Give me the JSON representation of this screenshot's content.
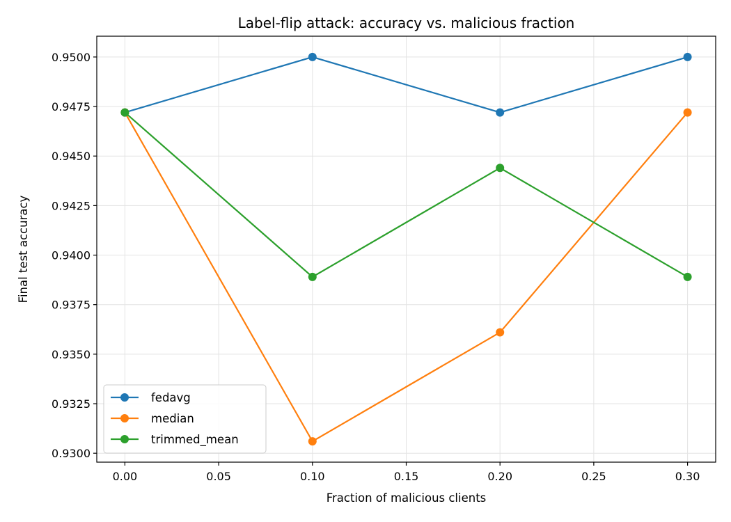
{
  "chart_data": {
    "type": "line",
    "title": "Label-flip attack: accuracy vs. malicious fraction",
    "xlabel": "Fraction of malicious clients",
    "ylabel": "Final test accuracy",
    "x": [
      0.0,
      0.1,
      0.2,
      0.3
    ],
    "xlim": [
      -0.015,
      0.315
    ],
    "ylim": [
      0.92955,
      0.95105
    ],
    "xticks": [
      0.0,
      0.05,
      0.1,
      0.15,
      0.2,
      0.25,
      0.3
    ],
    "xtick_labels": [
      "0.00",
      "0.05",
      "0.10",
      "0.15",
      "0.20",
      "0.25",
      "0.30"
    ],
    "yticks": [
      0.93,
      0.9325,
      0.935,
      0.9375,
      0.94,
      0.9425,
      0.945,
      0.9475,
      0.95
    ],
    "ytick_labels": [
      "0.9300",
      "0.9325",
      "0.9350",
      "0.9375",
      "0.9400",
      "0.9425",
      "0.9450",
      "0.9475",
      "0.9500"
    ],
    "grid": true,
    "legend_position": "lower-left",
    "series": [
      {
        "name": "fedavg",
        "color": "#1f77b4",
        "values": [
          0.9472,
          0.95,
          0.9472,
          0.95
        ]
      },
      {
        "name": "median",
        "color": "#ff7f0e",
        "values": [
          0.9472,
          0.9306,
          0.9361,
          0.9472
        ]
      },
      {
        "name": "trimmed_mean",
        "color": "#2ca02c",
        "values": [
          0.9472,
          0.9389,
          0.9444,
          0.9389
        ]
      }
    ]
  }
}
